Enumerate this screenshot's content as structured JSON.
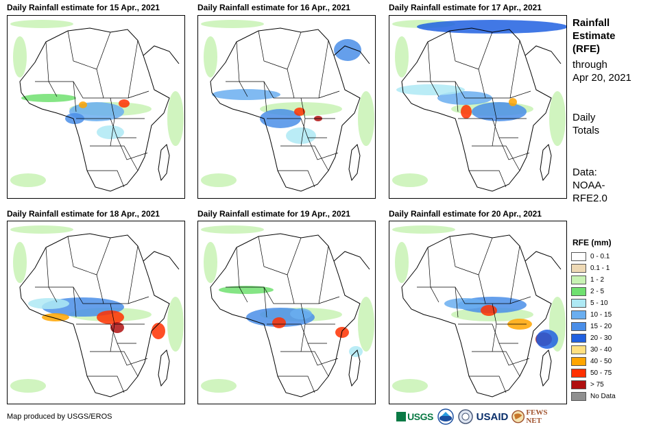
{
  "panels": [
    {
      "title": "Daily Rainfall estimate for 15 Apr., 2021"
    },
    {
      "title": "Daily Rainfall estimate for 16 Apr., 2021"
    },
    {
      "title": "Daily Rainfall estimate for 17 Apr., 2021"
    },
    {
      "title": "Daily Rainfall estimate for 18 Apr., 2021"
    },
    {
      "title": "Daily Rainfall estimate for 19 Apr., 2021"
    },
    {
      "title": "Daily Rainfall estimate for 20 Apr., 2021"
    }
  ],
  "side": {
    "heading_1": "Rainfall",
    "heading_2": "Estimate",
    "heading_3": "(RFE)",
    "through_1": "through",
    "through_2": "Apr 20, 2021",
    "daily_1": "Daily",
    "daily_2": "Totals",
    "data_1": "Data:",
    "data_2": "NOAA-",
    "data_3": "RFE2.0"
  },
  "legend": {
    "title": "RFE (mm)",
    "items": [
      {
        "label": "0 - 0.1",
        "color": "#ffffff"
      },
      {
        "label": "0.1 - 1",
        "color": "#eed9b5"
      },
      {
        "label": "1 - 2",
        "color": "#c8f2b4"
      },
      {
        "label": "2 - 5",
        "color": "#70e070"
      },
      {
        "label": "5 - 10",
        "color": "#aee9f4"
      },
      {
        "label": "10 - 15",
        "color": "#6aaef0"
      },
      {
        "label": "15 - 20",
        "color": "#4a8ee8"
      },
      {
        "label": "20 - 30",
        "color": "#2060e0"
      },
      {
        "label": "30 - 40",
        "color": "#ffe080"
      },
      {
        "label": "40 - 50",
        "color": "#ffa500"
      },
      {
        "label": "50 - 75",
        "color": "#ff3000"
      },
      {
        "label": "> 75",
        "color": "#b01010"
      },
      {
        "label": "No Data",
        "color": "#909090"
      }
    ]
  },
  "credit": "Map produced by USGS/EROS",
  "logos": {
    "usgs": "USGS",
    "usaid": "USAID",
    "fewsnet": "FEWS NET"
  }
}
